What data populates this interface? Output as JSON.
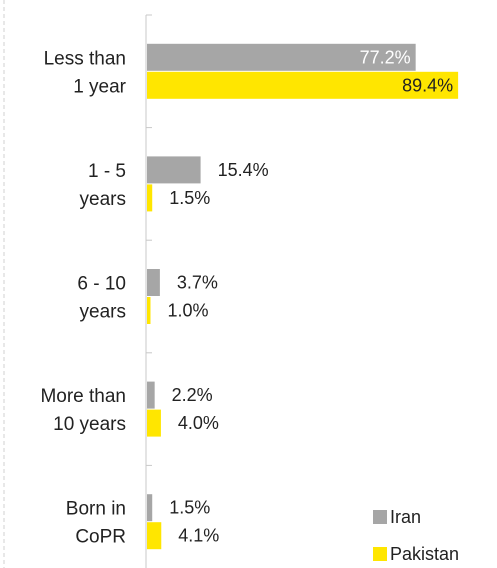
{
  "chart_data": {
    "type": "bar",
    "orientation": "horizontal",
    "categories": [
      [
        "Less than",
        "1 year"
      ],
      [
        "1 - 5",
        "years"
      ],
      [
        "6 - 10",
        "years"
      ],
      [
        "More than",
        "10 years"
      ],
      [
        "Born in",
        "CoPR"
      ]
    ],
    "series": [
      {
        "name": "Iran",
        "color": "#a6a6a6",
        "values": [
          77.2,
          15.4,
          3.7,
          2.2,
          1.5
        ],
        "labels": [
          "77.2%",
          "15.4%",
          "3.7%",
          "2.2%",
          "1.5%"
        ]
      },
      {
        "name": "Pakistan",
        "color": "#ffe600",
        "values": [
          89.4,
          1.5,
          1.0,
          4.0,
          4.1
        ],
        "labels": [
          "89.4%",
          "1.5%",
          "1.0%",
          "4.0%",
          "4.1%"
        ]
      }
    ],
    "xlim": [
      0,
      100
    ],
    "grid": false,
    "legend_position": "bottom-right"
  }
}
